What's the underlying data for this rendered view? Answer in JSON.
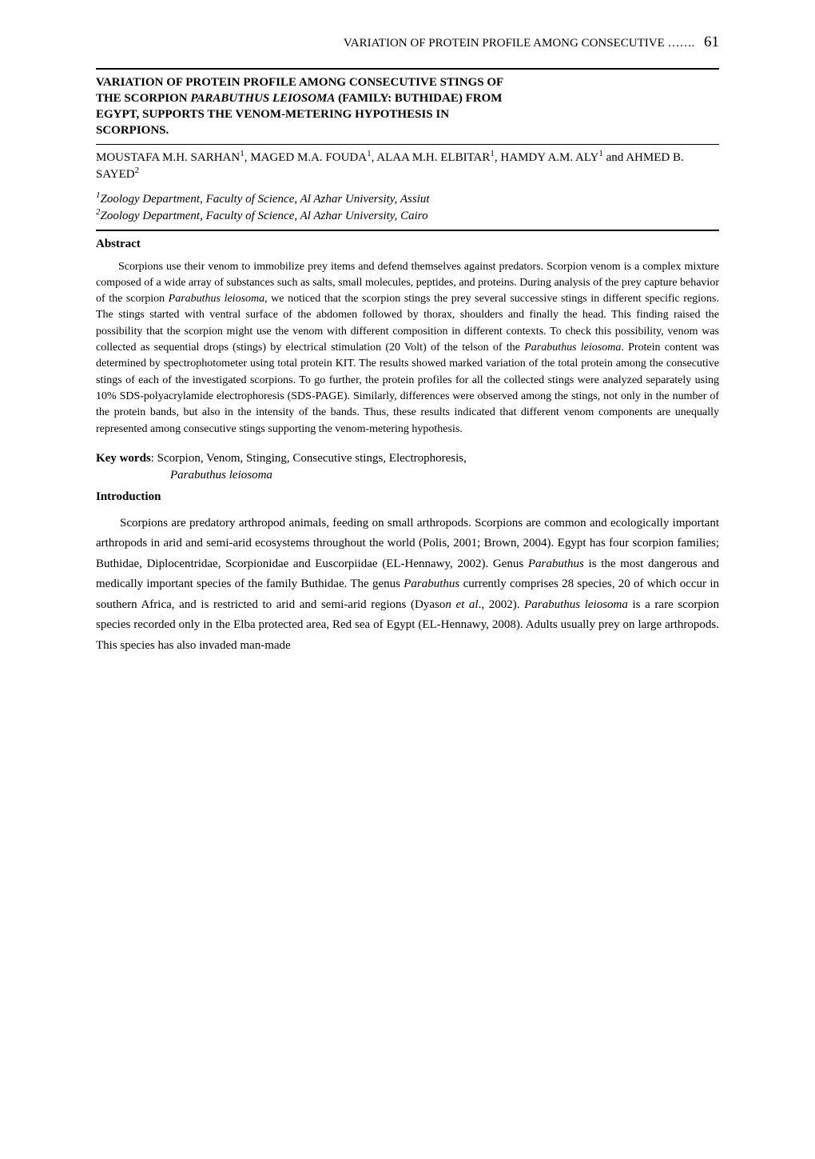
{
  "running_head": {
    "text": "VARIATION OF PROTEIN PROFILE AMONG CONSECUTIVE …….",
    "page_number": "61"
  },
  "title": {
    "line1": "VARIATION OF PROTEIN PROFILE AMONG CONSECUTIVE STINGS OF",
    "line2_pre": "THE SCORPION ",
    "line2_italic": "PARABUTHUS LEIOSOMA",
    "line2_post": " (FAMILY: BUTHIDAE) FROM",
    "line3": "EGYPT, SUPPORTS THE VENOM-METERING HYPOTHESIS IN",
    "line4": "SCORPIONS."
  },
  "authors": {
    "a1": "MOUSTAFA M.H. SARHAN",
    "a2": "MAGED M.A. FOUDA",
    "a3": "ALAA M.H. ELBITAR",
    "a4": "HAMDY A.M. ALY",
    "a5": "AHMED B. SAYED",
    "sup1": "1",
    "sup2": "2"
  },
  "affiliations": {
    "aff1_pre": "1",
    "aff1_text": "Zoology Department, Faculty of Science, Al Azhar University, Assiut",
    "aff2_pre": "2",
    "aff2_text": "Zoology Department, Faculty of Science, Al Azhar University, Cairo"
  },
  "abstract": {
    "heading": "Abstract",
    "body_pre": "Scorpions use their venom to immobilize prey items and defend themselves against predators. Scorpion venom is a complex mixture composed of a wide array of substances such as salts, small molecules, peptides, and proteins. During analysis of the prey capture behavior of the scorpion ",
    "body_species1": "Parabuthus leiosoma",
    "body_mid1": ", we noticed that the scorpion stings the prey several successive stings in different specific regions. The stings started with ventral surface of the abdomen followed by thorax, shoulders and finally the head. This finding raised the possibility that the scorpion might use the venom with different composition in different contexts. To check this possibility, venom was collected as sequential drops (stings) by electrical stimulation (20 Volt) of the telson of the ",
    "body_species2": "Parabuthus leiosoma",
    "body_post": ". Protein content was determined by spectrophotometer using total protein KIT. The results showed marked variation of the total protein among the consecutive stings of each of the investigated scorpions. To go further, the protein profiles for all the collected stings were analyzed separately using 10% SDS-polyacrylamide electrophoresis (SDS-PAGE). Similarly, differences were observed among the stings, not only in the number of the protein bands, but also in the intensity of the bands. Thus, these results indicated that different venom components are unequally represented among consecutive stings supporting the venom-metering hypothesis."
  },
  "keywords": {
    "label": "Key words",
    "line1": ": Scorpion, Venom, Stinging, Consecutive stings, Electrophoresis,",
    "line2": "Parabuthus leiosoma"
  },
  "introduction": {
    "heading": "Introduction",
    "p1_pre": "Scorpions are predatory arthropod animals, feeding on small arthropods. Scorpions are common and ecologically important arthropods in arid and semi-arid ecosystems throughout the world (Polis, 2001; Brown, 2004). Egypt has four scorpion families; Buthidae, Diplocentridae, Scorpionidae and Euscorpiidae (EL-Hennawy, 2002). Genus ",
    "p1_it1": "Parabuthus",
    "p1_mid1": " is the most dangerous and medically important species of the family Buthidae. The genus ",
    "p1_it2": "Parabuthus",
    "p1_mid2": " currently comprises 28 species, 20 of which occur in southern Africa, and is restricted to arid and semi-arid regions (Dyaso",
    "p1_it3": "n et al",
    "p1_mid3": "., 2002). ",
    "p1_it4": "Parabuthus leiosoma",
    "p1_post": " is a rare scorpion species recorded only in the Elba protected area, Red sea of Egypt (EL-Hennawy, 2008). Adults usually prey on large arthropods. This species has also invaded man-made"
  }
}
